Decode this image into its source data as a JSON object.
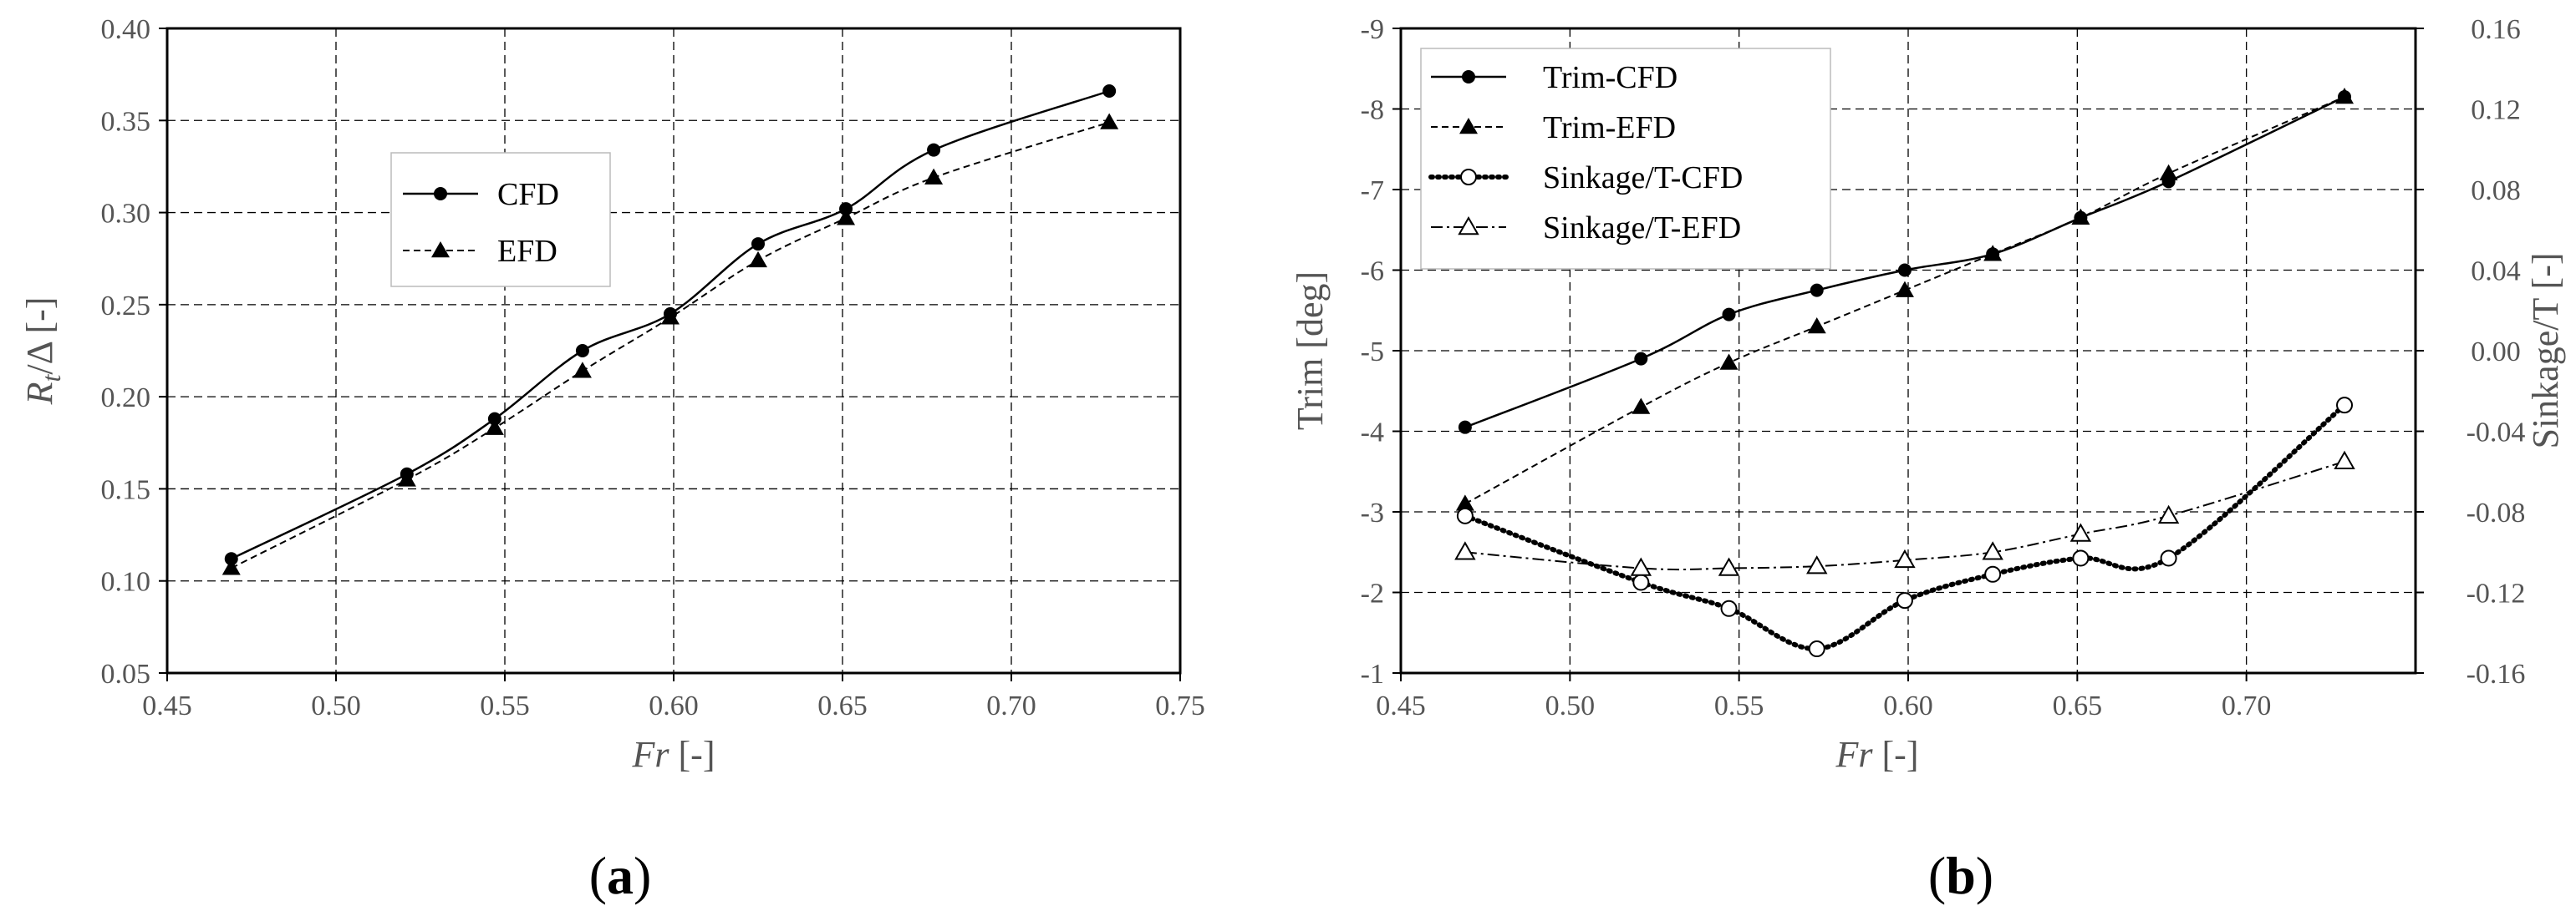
{
  "chart_data": [
    {
      "panel_label": "a",
      "type": "line",
      "xlabel": {
        "italic": "Fr",
        "normal": " [-]"
      },
      "ylabel": {
        "italic": "R",
        "sub": "t",
        "normal": "/Δ  [-]"
      },
      "xlim": [
        0.45,
        0.75
      ],
      "ylim": [
        0.05,
        0.4
      ],
      "xticks": [
        "0.45",
        "0.50",
        "0.55",
        "0.60",
        "0.65",
        "0.70",
        "0.75"
      ],
      "yticks": [
        "0.05",
        "0.10",
        "0.15",
        "0.20",
        "0.25",
        "0.30",
        "0.35",
        "0.40"
      ],
      "grid": true,
      "legend_position": "center-left",
      "series": [
        {
          "name": "CFD",
          "marker": "filled-circle",
          "line": "solid",
          "x": [
            0.469,
            0.521,
            0.547,
            0.573,
            0.599,
            0.625,
            0.651,
            0.677,
            0.729
          ],
          "y": [
            0.112,
            0.158,
            0.188,
            0.225,
            0.245,
            0.283,
            0.302,
            0.334,
            0.366
          ]
        },
        {
          "name": "EFD",
          "marker": "filled-triangle",
          "line": "dashed",
          "x": [
            0.469,
            0.521,
            0.547,
            0.573,
            0.599,
            0.625,
            0.651,
            0.677,
            0.729
          ],
          "y": [
            0.107,
            0.155,
            0.183,
            0.214,
            0.243,
            0.274,
            0.297,
            0.319,
            0.349
          ]
        }
      ]
    },
    {
      "panel_label": "b",
      "type": "line",
      "xlabel": {
        "italic": "Fr",
        "normal": " [-]"
      },
      "ylabel_left": "Trim [deg]",
      "ylabel_right": "Sinkage/T [-]",
      "xlim": [
        0.45,
        0.75
      ],
      "ylim_left": [
        -1,
        -9
      ],
      "ylim_right": [
        -0.16,
        0.16
      ],
      "xticks": [
        "0.45",
        "0.50",
        "0.55",
        "0.60",
        "0.65",
        "0.70"
      ],
      "yticks_left": [
        "-1",
        "-2",
        "-3",
        "-4",
        "-5",
        "-6",
        "-7",
        "-8",
        "-9"
      ],
      "yticks_right": [
        "-0.16",
        "-0.12",
        "-0.08",
        "-0.04",
        "0.00",
        "0.04",
        "0.08",
        "0.12",
        "0.16"
      ],
      "grid": true,
      "legend_position": "top-left",
      "series": [
        {
          "name": "Trim-CFD",
          "axis": "left",
          "marker": "filled-circle",
          "line": "solid",
          "x": [
            0.469,
            0.521,
            0.547,
            0.573,
            0.599,
            0.625,
            0.651,
            0.677,
            0.729
          ],
          "y": [
            -4.05,
            -4.9,
            -5.45,
            -5.75,
            -6.0,
            -6.2,
            -6.65,
            -7.1,
            -8.15
          ]
        },
        {
          "name": "Trim-EFD",
          "axis": "left",
          "marker": "filled-triangle",
          "line": "dashed",
          "x": [
            0.469,
            0.521,
            0.547,
            0.573,
            0.599,
            0.625,
            0.651,
            0.677,
            0.729
          ],
          "y": [
            -3.1,
            -4.3,
            -4.85,
            -5.3,
            -5.75,
            -6.2,
            -6.65,
            -7.2,
            -8.15
          ]
        },
        {
          "name": "Sinkage/T-CFD",
          "axis": "right",
          "marker": "open-circle",
          "line": "dotted",
          "x": [
            0.469,
            0.521,
            0.547,
            0.573,
            0.599,
            0.625,
            0.651,
            0.677,
            0.729
          ],
          "y": [
            -0.082,
            -0.115,
            -0.128,
            -0.148,
            -0.124,
            -0.111,
            -0.103,
            -0.103,
            -0.027
          ]
        },
        {
          "name": "Sinkage/T-EFD",
          "axis": "right",
          "marker": "open-triangle",
          "line": "dashdot",
          "x": [
            0.469,
            0.521,
            0.547,
            0.573,
            0.599,
            0.625,
            0.651,
            0.677,
            0.729
          ],
          "y": [
            -0.1,
            -0.108,
            -0.108,
            -0.107,
            -0.104,
            -0.1,
            -0.091,
            -0.082,
            -0.055
          ]
        }
      ]
    }
  ]
}
